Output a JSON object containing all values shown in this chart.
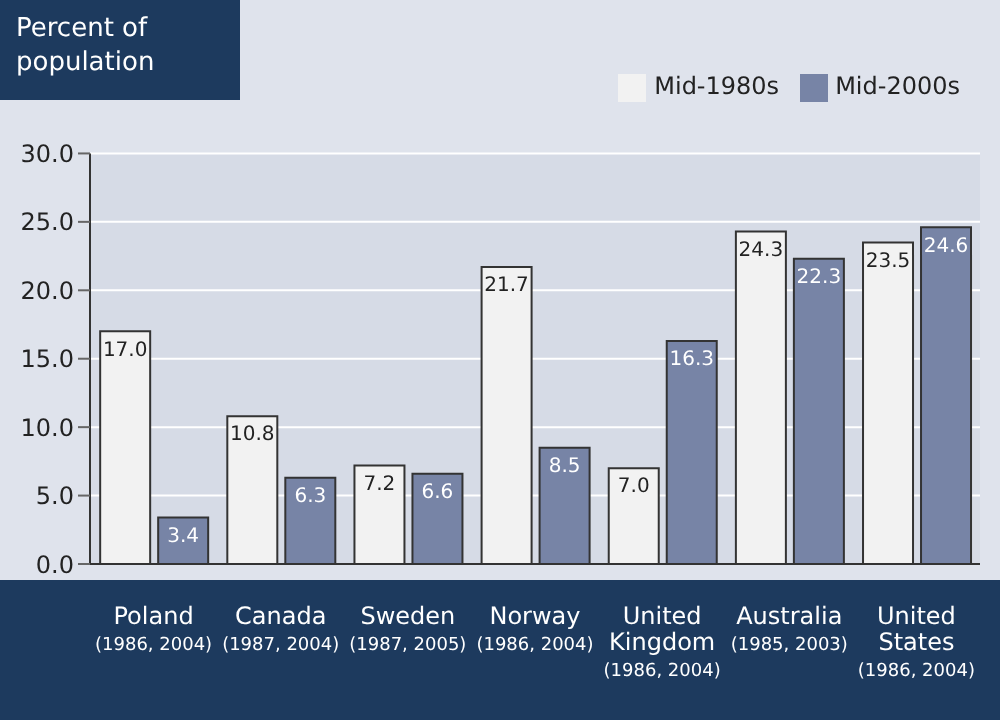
{
  "chart_data": {
    "type": "bar",
    "ylabel": "Percent of population",
    "categories": [
      "Poland\n(1986, 2004)",
      "Canada\n(1987, 2004)",
      "Sweden\n(1987, 2005)",
      "Norway\n(1986, 2004)",
      "United\nKingdom\n(1986, 2004)",
      "Australia\n(1985, 2003)",
      "United\nStates\n(1986, 2004)"
    ],
    "series": [
      {
        "name": "Mid-1980s",
        "color": "#f2f2f2",
        "values": [
          17.0,
          10.8,
          7.2,
          21.7,
          7.0,
          24.3,
          23.5
        ],
        "value_labels": [
          "17.0",
          "10.8",
          "7.2",
          "21.7",
          "7.0",
          "24.3",
          "23.5"
        ]
      },
      {
        "name": "Mid-2000s",
        "color": "#7784a6",
        "values": [
          3.4,
          6.3,
          6.6,
          8.5,
          16.3,
          22.3,
          24.6
        ],
        "value_labels": [
          "3.4",
          "6.3",
          "6.6",
          "8.5",
          "16.3",
          "22.3",
          "24.6"
        ]
      }
    ],
    "ylim": [
      0,
      30
    ],
    "yticks": [
      {
        "value": 0,
        "label": "0.0"
      },
      {
        "value": 5,
        "label": "5.0"
      },
      {
        "value": 10,
        "label": "10.0"
      },
      {
        "value": 15,
        "label": "15.0"
      },
      {
        "value": 20,
        "label": "20.0"
      },
      {
        "value": 25,
        "label": "25.0"
      },
      {
        "value": 30,
        "label": "30.0"
      }
    ],
    "grid": "y",
    "legend": "top right"
  }
}
